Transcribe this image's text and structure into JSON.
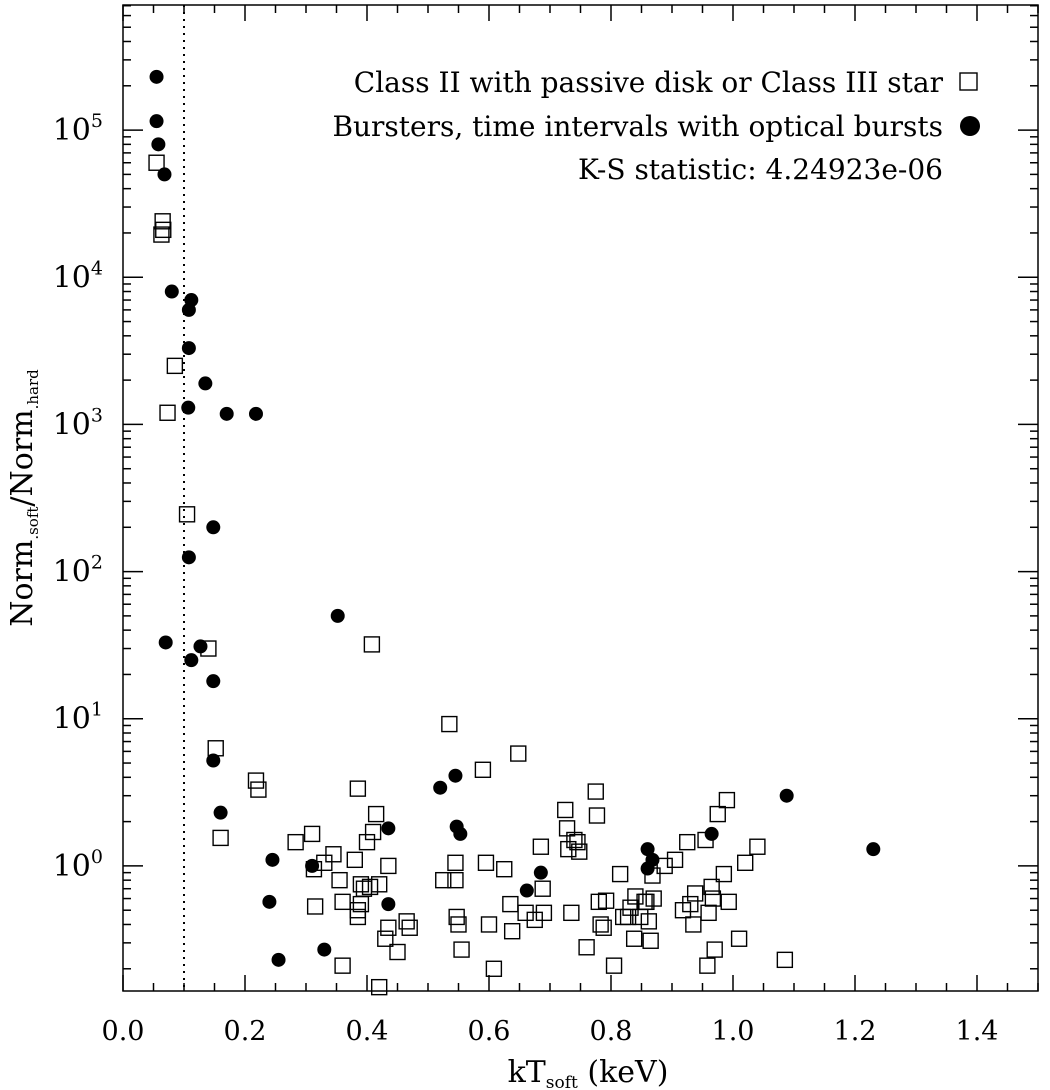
{
  "chart_data": {
    "type": "scatter",
    "xlabel": {
      "main": "kT",
      "sub": "soft",
      "unit": " (keV)"
    },
    "ylabel": {
      "a": "Norm",
      "a_sub": ".soft",
      "sep": "/Norm",
      "b_sub": ".hard"
    },
    "xlim": [
      0.0,
      1.5
    ],
    "ylim_log10": [
      -0.85,
      5.85
    ],
    "yscale": "log",
    "x_ticks": [
      {
        "value": 0.0,
        "label": "0.0"
      },
      {
        "value": 0.2,
        "label": "0.2"
      },
      {
        "value": 0.4,
        "label": "0.4"
      },
      {
        "value": 0.6,
        "label": "0.6"
      },
      {
        "value": 0.8,
        "label": "0.8"
      },
      {
        "value": 1.0,
        "label": "1.0"
      },
      {
        "value": 1.2,
        "label": "1.2"
      },
      {
        "value": 1.4,
        "label": "1.4"
      }
    ],
    "y_ticks": [
      {
        "exp": 0,
        "base": "10",
        "sup": "0"
      },
      {
        "exp": 1,
        "base": "10",
        "sup": "1"
      },
      {
        "exp": 2,
        "base": "10",
        "sup": "2"
      },
      {
        "exp": 3,
        "base": "10",
        "sup": "3"
      },
      {
        "exp": 4,
        "base": "10",
        "sup": "4"
      },
      {
        "exp": 5,
        "base": "10",
        "sup": "5"
      }
    ],
    "reference_line": {
      "x": 0.1,
      "style": "dotted"
    },
    "legend": {
      "position": "top-right",
      "entries": [
        {
          "label": "Class II with passive disk or Class III star",
          "marker": "open-square"
        },
        {
          "label": "Bursters, time intervals with optical bursts",
          "marker": "filled-circle"
        }
      ],
      "annotation": "K-S statistic: 4.24923e-06"
    },
    "series": [
      {
        "name": "Class II with passive disk or Class III star",
        "marker": "open-square",
        "points": [
          [
            0.055,
            60000
          ],
          [
            0.065,
            24000
          ],
          [
            0.066,
            21000
          ],
          [
            0.063,
            19500
          ],
          [
            0.073,
            1200
          ],
          [
            0.085,
            2500
          ],
          [
            0.105,
            245
          ],
          [
            0.14,
            30
          ],
          [
            0.152,
            6.3
          ],
          [
            0.16,
            1.55
          ],
          [
            0.218,
            3.8
          ],
          [
            0.222,
            3.3
          ],
          [
            0.283,
            1.45
          ],
          [
            0.31,
            1.65
          ],
          [
            0.313,
            0.95
          ],
          [
            0.315,
            0.53
          ],
          [
            0.33,
            1.05
          ],
          [
            0.345,
            1.2
          ],
          [
            0.355,
            0.8
          ],
          [
            0.36,
            0.57
          ],
          [
            0.36,
            0.21
          ],
          [
            0.38,
            1.1
          ],
          [
            0.385,
            3.35
          ],
          [
            0.385,
            0.5
          ],
          [
            0.385,
            0.45
          ],
          [
            0.39,
            0.75
          ],
          [
            0.39,
            0.55
          ],
          [
            0.395,
            0.7
          ],
          [
            0.4,
            1.45
          ],
          [
            0.405,
            0.72
          ],
          [
            0.408,
            32
          ],
          [
            0.41,
            1.7
          ],
          [
            0.415,
            2.25
          ],
          [
            0.42,
            0.75
          ],
          [
            0.42,
            0.15
          ],
          [
            0.43,
            0.32
          ],
          [
            0.435,
            1.0
          ],
          [
            0.435,
            0.38
          ],
          [
            0.45,
            0.26
          ],
          [
            0.465,
            0.42
          ],
          [
            0.47,
            0.38
          ],
          [
            0.525,
            0.8
          ],
          [
            0.535,
            9.2
          ],
          [
            0.545,
            1.05
          ],
          [
            0.545,
            0.8
          ],
          [
            0.547,
            0.45
          ],
          [
            0.55,
            0.4
          ],
          [
            0.555,
            0.27
          ],
          [
            0.59,
            4.5
          ],
          [
            0.595,
            1.05
          ],
          [
            0.6,
            0.4
          ],
          [
            0.608,
            0.2
          ],
          [
            0.625,
            0.95
          ],
          [
            0.635,
            0.55
          ],
          [
            0.638,
            0.36
          ],
          [
            0.648,
            5.8
          ],
          [
            0.66,
            0.48
          ],
          [
            0.675,
            0.43
          ],
          [
            0.685,
            1.35
          ],
          [
            0.688,
            0.7
          ],
          [
            0.69,
            0.48
          ],
          [
            0.725,
            2.4
          ],
          [
            0.728,
            1.8
          ],
          [
            0.73,
            1.3
          ],
          [
            0.735,
            0.48
          ],
          [
            0.74,
            1.5
          ],
          [
            0.745,
            1.45
          ],
          [
            0.748,
            1.25
          ],
          [
            0.76,
            0.28
          ],
          [
            0.775,
            3.2
          ],
          [
            0.777,
            2.2
          ],
          [
            0.78,
            0.57
          ],
          [
            0.783,
            0.4
          ],
          [
            0.788,
            0.38
          ],
          [
            0.792,
            0.58
          ],
          [
            0.805,
            0.21
          ],
          [
            0.815,
            0.88
          ],
          [
            0.82,
            0.45
          ],
          [
            0.828,
            0.45
          ],
          [
            0.832,
            0.52
          ],
          [
            0.838,
            0.32
          ],
          [
            0.84,
            0.62
          ],
          [
            0.848,
            0.45
          ],
          [
            0.855,
            0.57
          ],
          [
            0.858,
            0.57
          ],
          [
            0.862,
            0.42
          ],
          [
            0.865,
            0.31
          ],
          [
            0.868,
            0.86
          ],
          [
            0.87,
            0.6
          ],
          [
            0.888,
            1.0
          ],
          [
            0.905,
            1.1
          ],
          [
            0.918,
            0.5
          ],
          [
            0.925,
            1.45
          ],
          [
            0.93,
            0.55
          ],
          [
            0.935,
            0.4
          ],
          [
            0.938,
            0.65
          ],
          [
            0.955,
            1.5
          ],
          [
            0.958,
            0.21
          ],
          [
            0.96,
            0.48
          ],
          [
            0.965,
            0.72
          ],
          [
            0.967,
            0.6
          ],
          [
            0.97,
            0.27
          ],
          [
            0.975,
            2.25
          ],
          [
            0.985,
            0.88
          ],
          [
            0.99,
            2.8
          ],
          [
            0.993,
            0.57
          ],
          [
            1.01,
            0.32
          ],
          [
            1.02,
            1.05
          ],
          [
            1.04,
            1.35
          ],
          [
            1.085,
            0.23
          ]
        ]
      },
      {
        "name": "Bursters, time intervals with optical bursts",
        "marker": "filled-circle",
        "points": [
          [
            0.055,
            230000
          ],
          [
            0.055,
            115000
          ],
          [
            0.058,
            80000
          ],
          [
            0.068,
            50000
          ],
          [
            0.08,
            8000
          ],
          [
            0.112,
            7000
          ],
          [
            0.108,
            6000
          ],
          [
            0.108,
            3300
          ],
          [
            0.135,
            1900
          ],
          [
            0.107,
            1300
          ],
          [
            0.17,
            1180
          ],
          [
            0.218,
            1180
          ],
          [
            0.148,
            200
          ],
          [
            0.108,
            125
          ],
          [
            0.07,
            33
          ],
          [
            0.127,
            31
          ],
          [
            0.112,
            25
          ],
          [
            0.148,
            18
          ],
          [
            0.148,
            5.2
          ],
          [
            0.16,
            2.3
          ],
          [
            0.245,
            1.1
          ],
          [
            0.24,
            0.57
          ],
          [
            0.255,
            0.23
          ],
          [
            0.31,
            1.0
          ],
          [
            0.33,
            0.27
          ],
          [
            0.352,
            50
          ],
          [
            0.435,
            1.8
          ],
          [
            0.435,
            0.55
          ],
          [
            0.52,
            3.4
          ],
          [
            0.545,
            4.1
          ],
          [
            0.547,
            1.85
          ],
          [
            0.553,
            1.65
          ],
          [
            0.662,
            0.68
          ],
          [
            0.685,
            0.9
          ],
          [
            0.86,
            1.3
          ],
          [
            0.86,
            0.96
          ],
          [
            0.868,
            1.1
          ],
          [
            0.965,
            1.65
          ],
          [
            1.088,
            3.0
          ],
          [
            1.23,
            1.3
          ]
        ]
      }
    ]
  }
}
